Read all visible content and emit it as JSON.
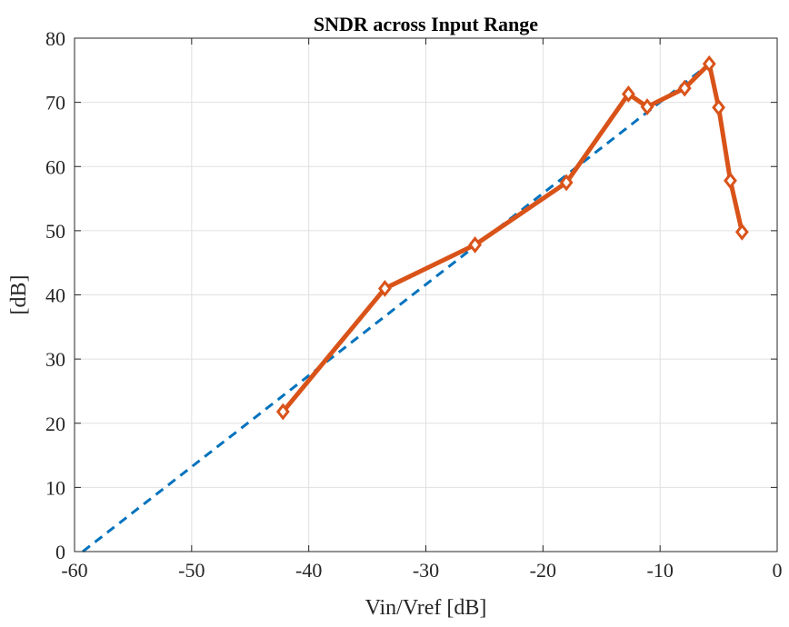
{
  "chart_data": {
    "type": "line",
    "title": "SNDR across Input Range",
    "xlabel": "Vin/Vref [dB]",
    "ylabel": "[dB]",
    "xlim": [
      -60,
      0
    ],
    "ylim": [
      0,
      80
    ],
    "xticks": [
      -60,
      -50,
      -40,
      -30,
      -20,
      -10,
      0
    ],
    "yticks": [
      0,
      10,
      20,
      30,
      40,
      50,
      60,
      70,
      80
    ],
    "xtick_labels": [
      "-60",
      "-50",
      "-40",
      "-30",
      "-20",
      "-10",
      "0"
    ],
    "ytick_labels": [
      "0",
      "10",
      "20",
      "30",
      "40",
      "50",
      "60",
      "70",
      "80"
    ],
    "grid": true,
    "legend": "none",
    "series": [
      {
        "style": "dashed",
        "color": "#0072BD",
        "x": [
          -59.3,
          -6.5
        ],
        "y": [
          0,
          75
        ]
      },
      {
        "style": "solid",
        "marker": "diamond",
        "color": "#D95319",
        "x": [
          -42.2,
          -33.5,
          -25.8,
          -18.0,
          -12.7,
          -11.1,
          -7.9,
          -5.8,
          -5.0,
          -4.0,
          -3.0
        ],
        "y": [
          21.8,
          41.0,
          47.8,
          57.5,
          71.3,
          69.3,
          72.2,
          76.0,
          69.2,
          57.8,
          49.8
        ]
      }
    ]
  }
}
